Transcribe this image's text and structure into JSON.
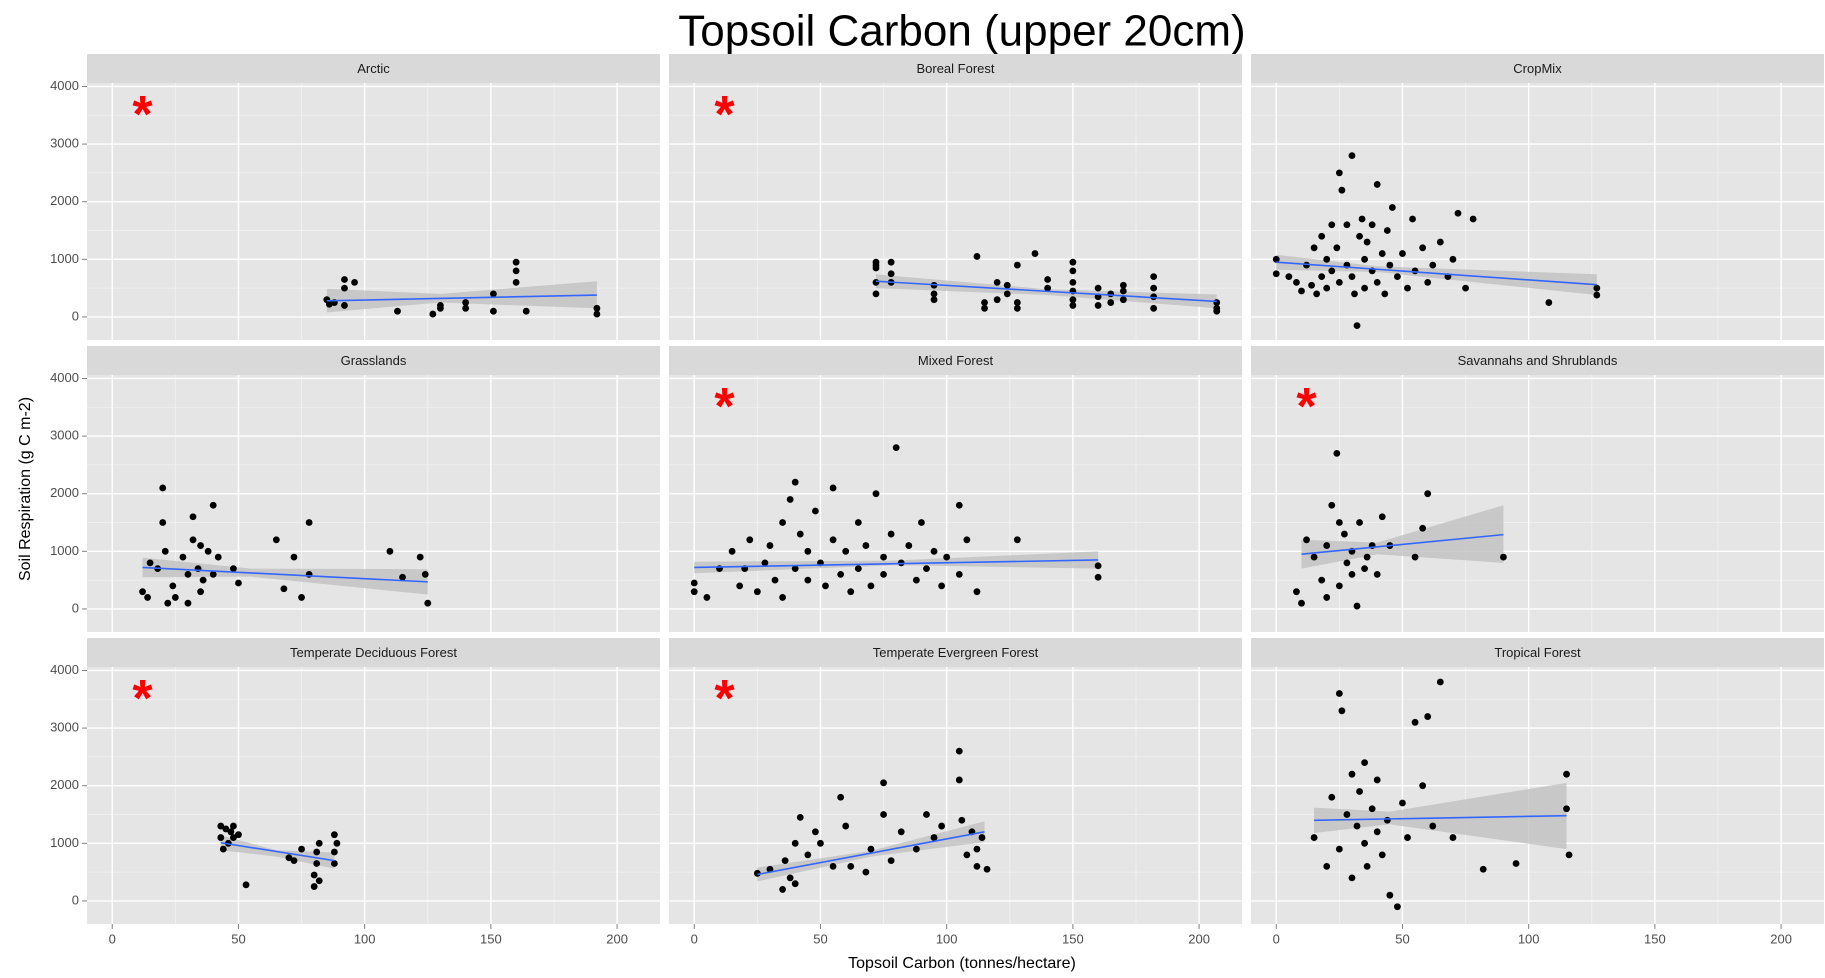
{
  "chart_data": {
    "type": "scatter",
    "title": "Topsoil Carbon (upper 20cm)",
    "x_label": "Topsoil Carbon (tonnes/hectare)",
    "y_label": "Soil Respiration (g C m-2)",
    "xlim": [
      -10,
      217
    ],
    "ylim": [
      -400,
      4060
    ],
    "xticks": [
      0,
      50,
      100,
      150,
      200
    ],
    "yticks": [
      0,
      1000,
      2000,
      3000,
      4000
    ],
    "x_minor": [
      25,
      75,
      125,
      175
    ],
    "y_minor": [
      500,
      1500,
      2500,
      3500
    ],
    "grid": true,
    "point_color": "#000000",
    "line_color": "#3366ff",
    "band_color": "#bdbdbd",
    "annotation_color": "#ff0000",
    "panels": [
      {
        "title": "Arctic",
        "annotation": "*",
        "x": [
          85,
          86,
          88,
          92,
          92,
          92,
          96,
          113,
          127,
          130,
          130,
          140,
          140,
          151,
          151,
          160,
          160,
          160,
          164,
          192,
          192
        ],
        "y": [
          300,
          220,
          250,
          650,
          500,
          200,
          600,
          100,
          50,
          200,
          150,
          150,
          250,
          400,
          100,
          950,
          800,
          600,
          100,
          150,
          50
        ],
        "trend": {
          "x": [
            85,
            192
          ],
          "y": [
            280,
            380
          ]
        },
        "band": {
          "x": [
            85,
            130,
            192
          ],
          "lower": [
            80,
            250,
            150
          ],
          "upper": [
            490,
            400,
            620
          ]
        }
      },
      {
        "title": "Boreal Forest",
        "annotation": "*",
        "x": [
          72,
          72,
          72,
          72,
          72,
          78,
          78,
          78,
          95,
          95,
          95,
          112,
          115,
          115,
          120,
          120,
          124,
          124,
          128,
          128,
          128,
          135,
          140,
          140,
          150,
          150,
          150,
          150,
          150,
          150,
          160,
          160,
          160,
          165,
          165,
          170,
          170,
          170,
          182,
          182,
          182,
          182,
          207,
          207,
          207
        ],
        "y": [
          950,
          900,
          850,
          600,
          400,
          950,
          750,
          600,
          550,
          400,
          300,
          1050,
          250,
          150,
          600,
          300,
          550,
          400,
          900,
          250,
          150,
          1100,
          650,
          500,
          950,
          800,
          600,
          450,
          300,
          200,
          500,
          350,
          200,
          400,
          250,
          550,
          450,
          300,
          700,
          500,
          350,
          150,
          250,
          150,
          100
        ],
        "trend": {
          "x": [
            72,
            207
          ],
          "y": [
            620,
            270
          ]
        },
        "band": {
          "x": [
            72,
            140,
            207
          ],
          "lower": [
            500,
            380,
            150
          ],
          "upper": [
            740,
            480,
            390
          ]
        }
      },
      {
        "title": "CropMix",
        "annotation": null,
        "x": [
          0,
          0,
          5,
          8,
          10,
          12,
          14,
          15,
          16,
          18,
          18,
          20,
          20,
          22,
          22,
          24,
          25,
          25,
          26,
          28,
          28,
          30,
          30,
          31,
          32,
          33,
          34,
          35,
          35,
          36,
          38,
          38,
          40,
          40,
          42,
          43,
          44,
          45,
          46,
          48,
          50,
          52,
          54,
          55,
          58,
          60,
          62,
          65,
          68,
          70,
          72,
          75,
          78,
          108,
          127,
          127
        ],
        "y": [
          1000,
          750,
          700,
          600,
          450,
          900,
          550,
          1200,
          400,
          700,
          1400,
          1000,
          500,
          1600,
          800,
          1200,
          2500,
          600,
          2200,
          1600,
          900,
          2800,
          700,
          400,
          -150,
          1400,
          1700,
          1000,
          500,
          1300,
          1600,
          800,
          2300,
          600,
          1100,
          400,
          1500,
          900,
          1900,
          700,
          1100,
          500,
          1700,
          800,
          1200,
          600,
          900,
          1300,
          700,
          1000,
          1800,
          500,
          1700,
          250,
          500,
          380
        ],
        "trend": {
          "x": [
            0,
            127
          ],
          "y": [
            950,
            560
          ]
        },
        "band": {
          "x": [
            0,
            40,
            127
          ],
          "lower": [
            820,
            780,
            380
          ],
          "upper": [
            1080,
            880,
            740
          ]
        }
      },
      {
        "title": "Grasslands",
        "annotation": null,
        "x": [
          12,
          14,
          15,
          18,
          20,
          20,
          21,
          22,
          24,
          25,
          28,
          30,
          30,
          32,
          32,
          34,
          35,
          35,
          36,
          38,
          40,
          40,
          42,
          48,
          50,
          65,
          68,
          72,
          75,
          78,
          78,
          110,
          115,
          122,
          124,
          125
        ],
        "y": [
          300,
          200,
          800,
          700,
          2100,
          1500,
          1000,
          100,
          400,
          200,
          900,
          600,
          100,
          1600,
          1200,
          700,
          300,
          1100,
          500,
          1000,
          1800,
          600,
          900,
          700,
          450,
          1200,
          350,
          900,
          200,
          1500,
          600,
          1000,
          550,
          900,
          600,
          100
        ],
        "trend": {
          "x": [
            12,
            125
          ],
          "y": [
            720,
            470
          ]
        },
        "band": {
          "x": [
            12,
            55,
            125
          ],
          "lower": [
            550,
            560,
            250
          ],
          "upper": [
            890,
            700,
            690
          ]
        }
      },
      {
        "title": "Mixed Forest",
        "annotation": "*",
        "x": [
          0,
          0,
          5,
          10,
          15,
          18,
          20,
          22,
          25,
          28,
          30,
          32,
          35,
          35,
          38,
          40,
          40,
          42,
          45,
          45,
          48,
          50,
          52,
          55,
          55,
          58,
          60,
          62,
          65,
          65,
          68,
          70,
          72,
          75,
          75,
          78,
          80,
          82,
          85,
          88,
          90,
          92,
          95,
          98,
          100,
          105,
          105,
          108,
          112,
          128,
          160,
          160
        ],
        "y": [
          450,
          300,
          200,
          700,
          1000,
          400,
          700,
          1200,
          300,
          800,
          1100,
          500,
          1500,
          200,
          1900,
          2200,
          700,
          1300,
          500,
          1000,
          1700,
          800,
          400,
          1200,
          2100,
          600,
          1000,
          300,
          1500,
          700,
          1100,
          400,
          2000,
          900,
          600,
          1300,
          2800,
          800,
          1100,
          500,
          1500,
          700,
          1000,
          400,
          900,
          1800,
          600,
          1200,
          300,
          1200,
          750,
          550
        ],
        "trend": {
          "x": [
            0,
            160
          ],
          "y": [
            720,
            850
          ]
        },
        "band": {
          "x": [
            0,
            80,
            160
          ],
          "lower": [
            620,
            760,
            700
          ],
          "upper": [
            820,
            840,
            1000
          ]
        }
      },
      {
        "title": "Savannahs and Shrublands",
        "annotation": "*",
        "x": [
          8,
          10,
          12,
          15,
          18,
          20,
          20,
          22,
          24,
          25,
          25,
          27,
          28,
          30,
          30,
          32,
          33,
          35,
          36,
          38,
          40,
          42,
          45,
          55,
          58,
          60,
          90
        ],
        "y": [
          300,
          100,
          1200,
          900,
          500,
          1100,
          200,
          1800,
          2700,
          1500,
          400,
          1300,
          800,
          1000,
          600,
          50,
          1500,
          700,
          900,
          1100,
          600,
          1600,
          1100,
          900,
          1400,
          2000,
          900
        ],
        "trend": {
          "x": [
            10,
            90
          ],
          "y": [
            950,
            1290
          ]
        },
        "band": {
          "x": [
            10,
            40,
            90
          ],
          "lower": [
            700,
            950,
            800
          ],
          "upper": [
            1200,
            1150,
            1800
          ]
        }
      },
      {
        "title": "Temperate Deciduous Forest",
        "annotation": "*",
        "x": [
          43,
          43,
          44,
          45,
          46,
          47,
          48,
          48,
          50,
          53,
          70,
          72,
          75,
          80,
          80,
          81,
          81,
          82,
          82,
          88,
          88,
          88,
          89
        ],
        "y": [
          1300,
          1100,
          900,
          1250,
          1000,
          1200,
          1300,
          1100,
          1150,
          280,
          750,
          700,
          900,
          250,
          450,
          650,
          850,
          1000,
          350,
          650,
          850,
          1150,
          1000
        ],
        "trend": {
          "x": [
            43,
            88
          ],
          "y": [
            1010,
            700
          ]
        },
        "band": {
          "x": [
            43,
            65,
            88
          ],
          "lower": [
            880,
            770,
            560
          ],
          "upper": [
            1140,
            880,
            840
          ]
        }
      },
      {
        "title": "Temperate Evergreen Forest",
        "annotation": "*",
        "x": [
          25,
          30,
          35,
          36,
          38,
          40,
          40,
          42,
          45,
          48,
          50,
          55,
          58,
          60,
          62,
          68,
          70,
          75,
          75,
          78,
          82,
          88,
          92,
          95,
          98,
          105,
          105,
          106,
          108,
          110,
          112,
          112,
          114,
          116
        ],
        "y": [
          480,
          550,
          200,
          700,
          400,
          1000,
          300,
          1450,
          800,
          1200,
          1000,
          600,
          1800,
          1300,
          600,
          500,
          900,
          2050,
          1500,
          700,
          1200,
          900,
          1500,
          1100,
          1300,
          2600,
          2100,
          1400,
          800,
          1200,
          900,
          600,
          1100,
          550
        ],
        "trend": {
          "x": [
            25,
            115
          ],
          "y": [
            460,
            1200
          ]
        },
        "band": {
          "x": [
            25,
            70,
            115
          ],
          "lower": [
            340,
            770,
            1020
          ],
          "upper": [
            580,
            870,
            1380
          ]
        }
      },
      {
        "title": "Tropical Forest",
        "annotation": null,
        "x": [
          15,
          20,
          22,
          25,
          25,
          26,
          28,
          30,
          30,
          32,
          33,
          35,
          35,
          36,
          38,
          40,
          40,
          42,
          44,
          45,
          48,
          50,
          52,
          55,
          58,
          60,
          62,
          65,
          70,
          82,
          95,
          115,
          115,
          116
        ],
        "y": [
          1100,
          600,
          1800,
          3600,
          900,
          3300,
          1500,
          2200,
          400,
          1300,
          1900,
          1000,
          2400,
          600,
          1600,
          1200,
          2100,
          800,
          1400,
          100,
          -100,
          1700,
          1100,
          3100,
          2000,
          3200,
          1300,
          3800,
          1100,
          550,
          650,
          2200,
          1600,
          800
        ],
        "trend": {
          "x": [
            15,
            115
          ],
          "y": [
            1400,
            1480
          ]
        },
        "band": {
          "x": [
            15,
            45,
            115
          ],
          "lower": [
            1180,
            1330,
            900
          ],
          "upper": [
            1620,
            1550,
            2050
          ]
        }
      }
    ]
  }
}
